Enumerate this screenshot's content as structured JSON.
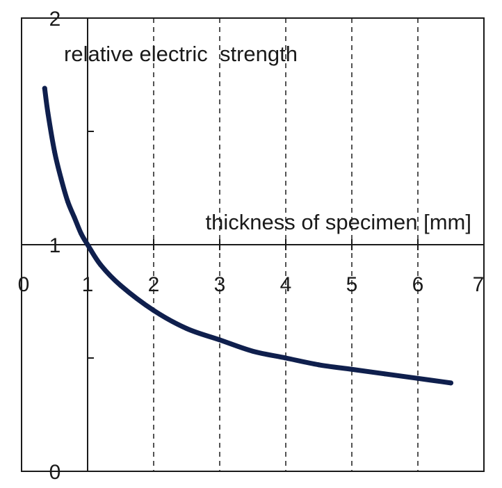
{
  "chart_data": {
    "type": "line",
    "ylabel": "relative electric  strength",
    "xlabel": "thickness of specimen [mm]",
    "xlim": [
      0,
      7
    ],
    "ylim": [
      0,
      2
    ],
    "x_ticks": [
      "0",
      "1",
      "2",
      "3",
      "4",
      "5",
      "6",
      "7"
    ],
    "y_ticks": [
      "0",
      "1",
      "2"
    ],
    "y_minor_ticks": [
      0.5,
      1.5
    ],
    "vertical_dashed_grid_at": [
      2,
      3,
      4,
      5,
      6
    ],
    "grid": "vertical dashed",
    "series": [
      {
        "color": "#0f1f4d",
        "x": [
          0.35,
          0.4,
          0.5,
          0.6,
          0.7,
          0.8,
          0.9,
          1.0,
          1.2,
          1.5,
          2.0,
          2.5,
          3.0,
          3.5,
          4.0,
          4.5,
          5.0,
          5.5,
          6.0,
          6.5
        ],
        "y": [
          1.69,
          1.58,
          1.41,
          1.29,
          1.19,
          1.12,
          1.05,
          1.0,
          0.91,
          0.82,
          0.71,
          0.63,
          0.58,
          0.53,
          0.5,
          0.47,
          0.45,
          0.43,
          0.41,
          0.39
        ]
      }
    ]
  }
}
